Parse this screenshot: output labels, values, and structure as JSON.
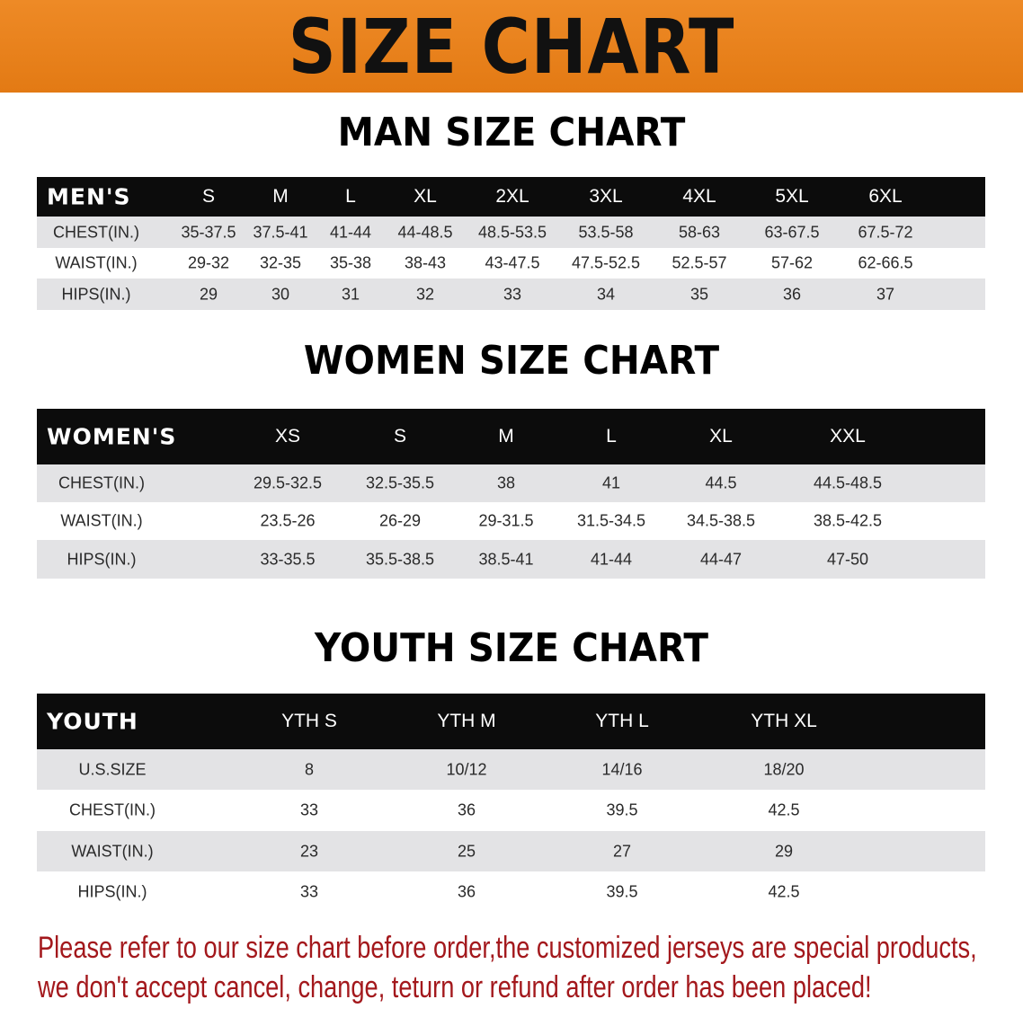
{
  "banner": {
    "title": "SIZE CHART",
    "color": "#e8821c"
  },
  "tables": [
    {
      "id": "men",
      "title": "MAN SIZE CHART",
      "header": [
        "MEN'S",
        "S",
        "M",
        "L",
        "XL",
        "2XL",
        "3XL",
        "4XL",
        "5XL",
        "6XL"
      ],
      "rows": [
        [
          "CHEST(IN.)",
          "35-37.5",
          "37.5-41",
          "41-44",
          "44-48.5",
          "48.5-53.5",
          "53.5-58",
          "58-63",
          "63-67.5",
          "67.5-72"
        ],
        [
          "WAIST(IN.)",
          "29-32",
          "32-35",
          "35-38",
          "38-43",
          "43-47.5",
          "47.5-52.5",
          "52.5-57",
          "57-62",
          "62-66.5"
        ],
        [
          "HIPS(IN.)",
          "29",
          "30",
          "31",
          "32",
          "33",
          "34",
          "35",
          "36",
          "37"
        ]
      ]
    },
    {
      "id": "women",
      "title": "WOMEN SIZE CHART",
      "header": [
        "WOMEN'S",
        "XS",
        "S",
        "M",
        "L",
        "XL",
        "XXL"
      ],
      "rows": [
        [
          "CHEST(IN.)",
          "29.5-32.5",
          "32.5-35.5",
          "38",
          "41",
          "44.5",
          "44.5-48.5"
        ],
        [
          "WAIST(IN.)",
          "23.5-26",
          "26-29",
          "29-31.5",
          "31.5-34.5",
          "34.5-38.5",
          "38.5-42.5"
        ],
        [
          "HIPS(IN.)",
          "33-35.5",
          "35.5-38.5",
          "38.5-41",
          "41-44",
          "44-47",
          "47-50"
        ]
      ]
    },
    {
      "id": "youth",
      "title": "YOUTH SIZE CHART",
      "header": [
        "YOUTH",
        "YTH S",
        "YTH M",
        "YTH L",
        "YTH XL"
      ],
      "rows": [
        [
          "U.S.SIZE",
          "8",
          "10/12",
          "14/16",
          "18/20"
        ],
        [
          "CHEST(IN.)",
          "33",
          "36",
          "39.5",
          "42.5"
        ],
        [
          "WAIST(IN.)",
          "23",
          "25",
          "27",
          "29"
        ],
        [
          "HIPS(IN.)",
          "33",
          "36",
          "39.5",
          "42.5"
        ]
      ]
    }
  ],
  "note": {
    "lines": [
      "Please refer to our size chart before order,the customized jerseys are special products,",
      "we don't accept cancel, change, teturn or refund after order has been placed!"
    ],
    "color": "#a3181c"
  }
}
